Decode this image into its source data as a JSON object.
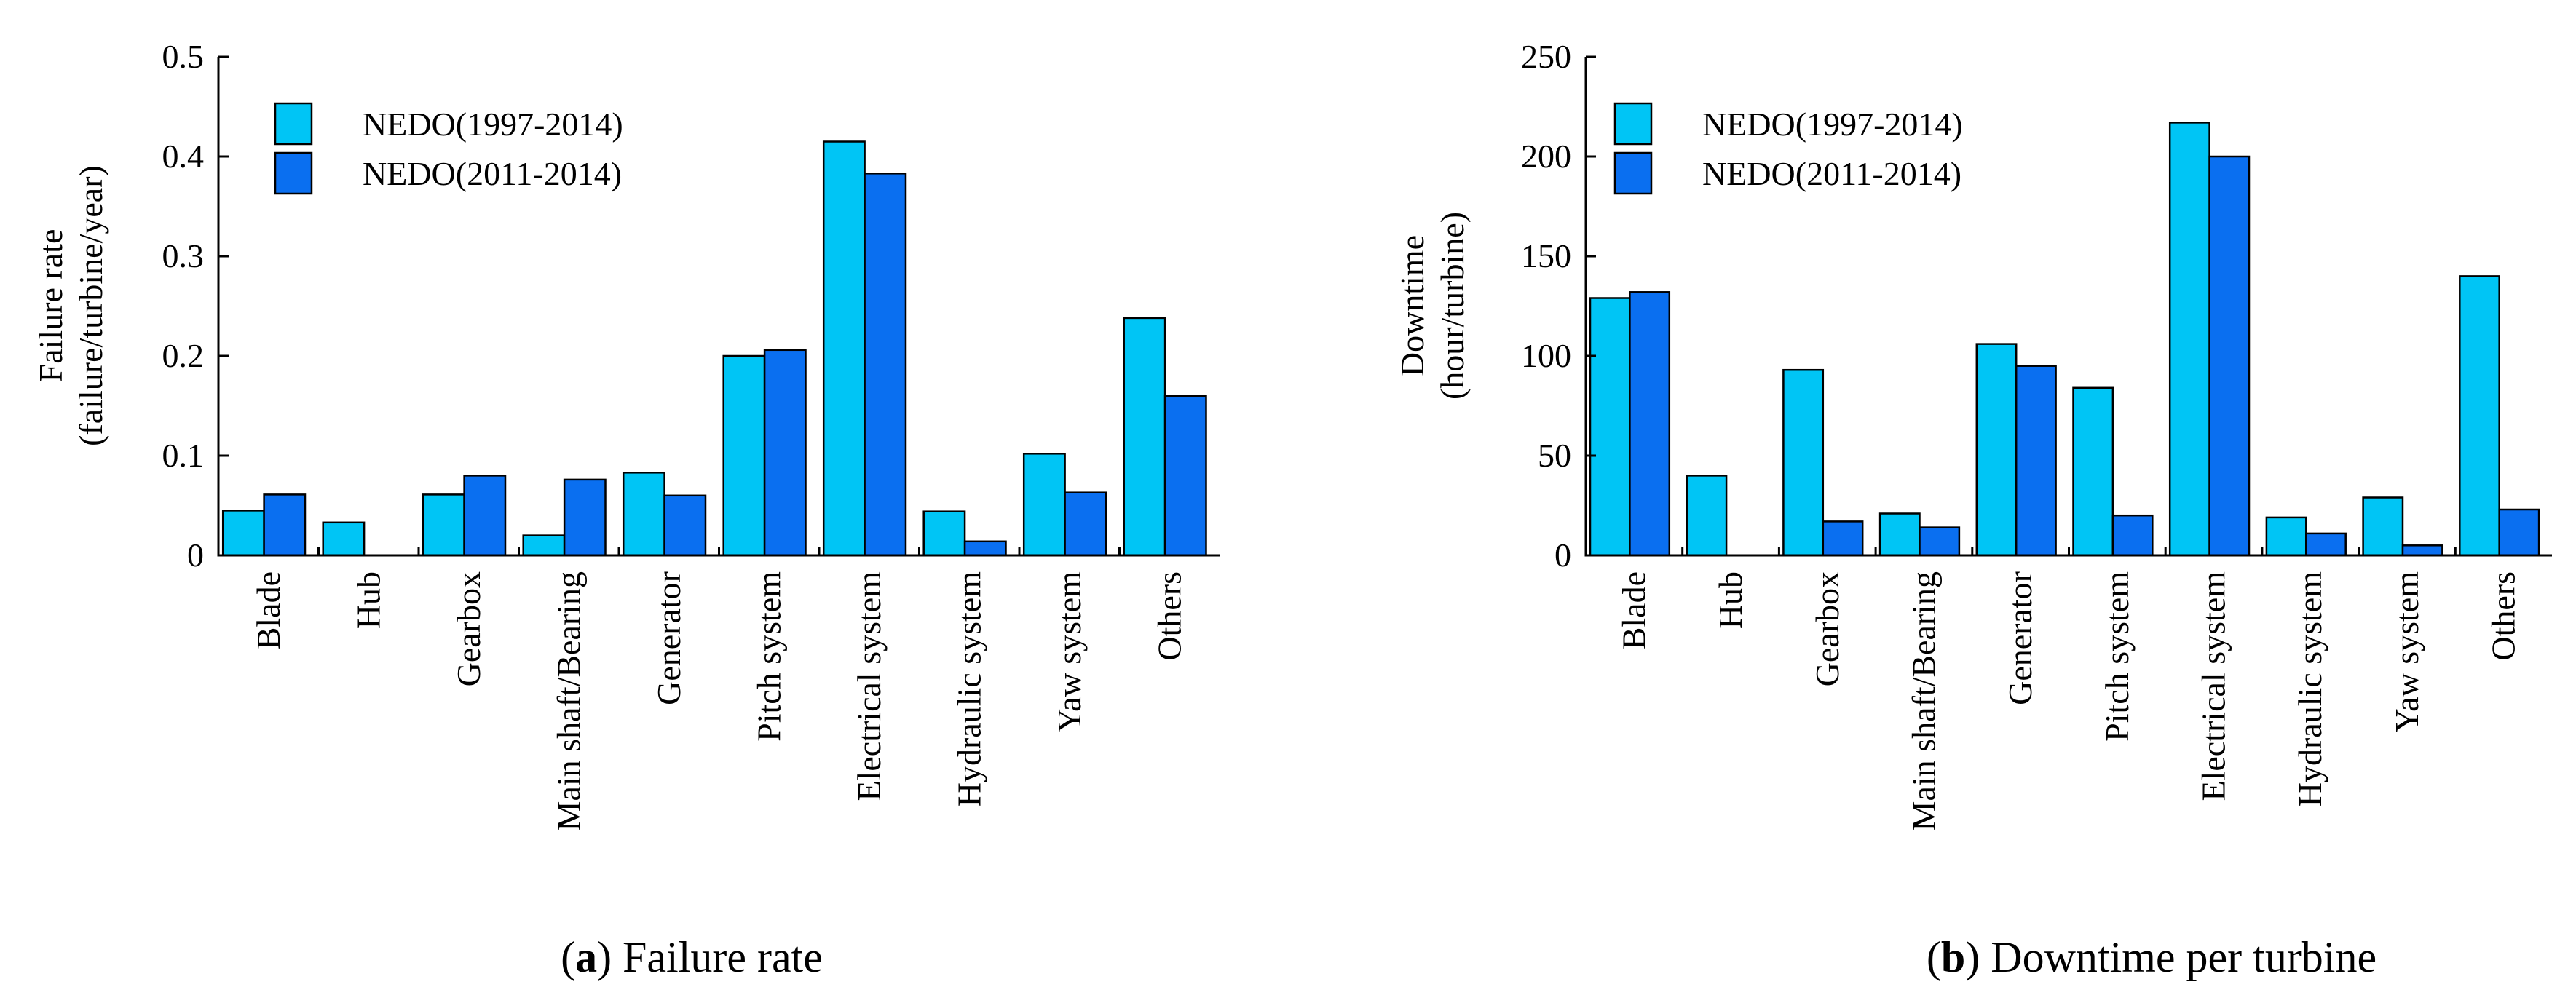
{
  "figure": {
    "colors": {
      "series1": "#00c5f5",
      "series2": "#0a6ff0"
    }
  },
  "chart_data": [
    {
      "type": "bar",
      "caption_letter": "a",
      "caption_text": "Failure rate",
      "ylabel": [
        "Failure rate",
        "(failure/turbine/year)"
      ],
      "ylim": [
        0,
        0.5
      ],
      "yticks": [
        0,
        0.1,
        0.2,
        0.3,
        0.4,
        0.5
      ],
      "ytick_labels": [
        "0",
        "0.1",
        "0.2",
        "0.3",
        "0.4",
        "0.5"
      ],
      "legend_position": "top-left",
      "categories": [
        "Blade",
        "Hub",
        "Gearbox",
        "Main shaft/Bearing",
        "Generator",
        "Pitch system",
        "Electrical system",
        "Hydraulic system",
        "Yaw system",
        "Others"
      ],
      "series": [
        {
          "name": "NEDO(1997-2014)",
          "values": [
            0.045,
            0.033,
            0.061,
            0.02,
            0.083,
            0.2,
            0.415,
            0.044,
            0.102,
            0.238
          ]
        },
        {
          "name": "NEDO(2011-2014)",
          "values": [
            0.061,
            0.0,
            0.08,
            0.076,
            0.06,
            0.206,
            0.383,
            0.014,
            0.063,
            0.16
          ]
        }
      ]
    },
    {
      "type": "bar",
      "caption_letter": "b",
      "caption_text": "Downtime per turbine",
      "ylabel": [
        "Downtime",
        "(hour/turbine)"
      ],
      "ylim": [
        0,
        250
      ],
      "yticks": [
        0,
        50,
        100,
        150,
        200,
        250
      ],
      "ytick_labels": [
        "0",
        "50",
        "100",
        "150",
        "200",
        "250"
      ],
      "legend_position": "top-left",
      "categories": [
        "Blade",
        "Hub",
        "Gearbox",
        "Main shaft/Bearing",
        "Generator",
        "Pitch system",
        "Electrical system",
        "Hydraulic system",
        "Yaw system",
        "Others"
      ],
      "series": [
        {
          "name": "NEDO(1997-2014)",
          "values": [
            129,
            40,
            93,
            21,
            106,
            84,
            217,
            19,
            29,
            140
          ]
        },
        {
          "name": "NEDO(2011-2014)",
          "values": [
            132,
            0,
            17,
            14,
            95,
            20,
            200,
            11,
            5,
            23
          ]
        }
      ]
    }
  ]
}
